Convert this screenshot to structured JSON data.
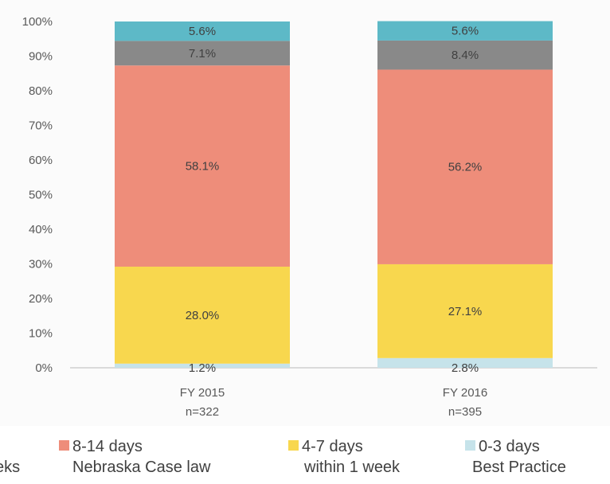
{
  "chart_data": {
    "type": "bar",
    "stacked": true,
    "categories": [
      "FY 2015\nn=322",
      "FY 2016\nn=395"
    ],
    "category_lines": [
      [
        "FY 2015",
        "n=322"
      ],
      [
        "FY 2016",
        "n=395"
      ]
    ],
    "ylim": [
      0,
      100
    ],
    "yticks": [
      "0%",
      "10%",
      "20%",
      "30%",
      "40%",
      "50%",
      "60%",
      "70%",
      "80%",
      "90%",
      "100%"
    ],
    "grid": false,
    "series": [
      {
        "name": "0-3 days Best Practice",
        "color": "#c6e3ea",
        "values": [
          1.2,
          2.8
        ],
        "labels": [
          "1.2%",
          "2.8%"
        ]
      },
      {
        "name": "4-7 days within 1 week",
        "color": "#f8d74e",
        "values": [
          28.0,
          27.1
        ],
        "labels": [
          "28.0%",
          "27.1%"
        ]
      },
      {
        "name": "8-14 days Nebraska Case law",
        "color": "#ee8d7a",
        "values": [
          58.1,
          56.2
        ],
        "labels": [
          "58.1%",
          "56.2%"
        ]
      },
      {
        "color": "#898989",
        "values": [
          7.1,
          8.4
        ],
        "labels": [
          "7.1%",
          "8.4%"
        ]
      },
      {
        "color": "#5db9c7",
        "values": [
          5.6,
          5.6
        ],
        "labels": [
          "5.6%",
          "5.6%"
        ]
      }
    ]
  },
  "legend": [
    {
      "key": "partial",
      "line2": "eks"
    },
    {
      "key": "8-14",
      "line1": "8-14 days",
      "line2": "Nebraska Case law",
      "color": "#ee8d7a"
    },
    {
      "key": "4-7",
      "line1": "4-7 days",
      "line2": "within 1 week",
      "color": "#f8d74e"
    },
    {
      "key": "0-3",
      "line1": "0-3 days",
      "line2": "Best Practice",
      "color": "#c6e3ea"
    }
  ]
}
